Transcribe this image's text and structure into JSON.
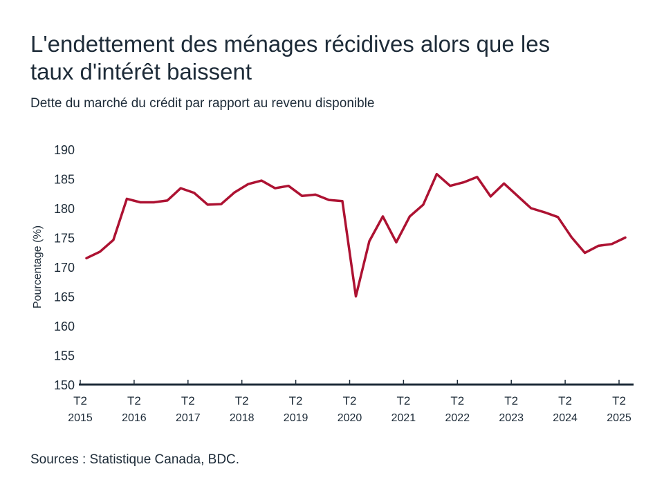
{
  "title": "L'endettement des ménages récidives alors que les taux d'intérêt baissent",
  "subtitle": "Dette du marché du crédit par rapport au revenu disponible",
  "source": "Sources : Statistique Canada, BDC.",
  "colors": {
    "line": "#ad1232",
    "axis": "#1d2b38",
    "text": "#1d2b38"
  },
  "chart_data": {
    "type": "line",
    "title": "L'endettement des ménages récidives alors que les taux d'intérêt baissent",
    "subtitle": "Dette du marché du crédit par rapport au revenu disponible",
    "xlabel": "",
    "ylabel": "Pourcentage (%)",
    "ylim": [
      150,
      190
    ],
    "yticks": [
      150,
      155,
      160,
      165,
      170,
      175,
      180,
      185,
      190
    ],
    "xticks": [
      {
        "q": "T2",
        "year": "2015"
      },
      {
        "q": "T2",
        "year": "2016"
      },
      {
        "q": "T2",
        "year": "2017"
      },
      {
        "q": "T2",
        "year": "2018"
      },
      {
        "q": "T2",
        "year": "2019"
      },
      {
        "q": "T2",
        "year": "2020"
      },
      {
        "q": "T2",
        "year": "2021"
      },
      {
        "q": "T2",
        "year": "2022"
      },
      {
        "q": "T2",
        "year": "2023"
      },
      {
        "q": "T2",
        "year": "2024"
      },
      {
        "q": "T2",
        "year": "2025"
      }
    ],
    "grid": false,
    "x": [
      "2015 T2",
      "2015 T3",
      "2015 T4",
      "2016 T1",
      "2016 T2",
      "2016 T3",
      "2016 T4",
      "2017 T1",
      "2017 T2",
      "2017 T3",
      "2017 T4",
      "2018 T1",
      "2018 T2",
      "2018 T3",
      "2018 T4",
      "2019 T1",
      "2019 T2",
      "2019 T3",
      "2019 T4",
      "2020 T1",
      "2020 T2",
      "2020 T3",
      "2020 T4",
      "2021 T1",
      "2021 T2",
      "2021 T3",
      "2021 T4",
      "2022 T1",
      "2022 T2",
      "2022 T3",
      "2022 T4",
      "2023 T1",
      "2023 T2",
      "2023 T3",
      "2023 T4",
      "2024 T1",
      "2024 T2",
      "2024 T3",
      "2024 T4",
      "2025 T1",
      "2025 T2"
    ],
    "series": [
      {
        "values": [
          171.5,
          172.6,
          174.6,
          181.6,
          181.0,
          181.0,
          181.3,
          183.4,
          182.6,
          180.6,
          180.7,
          182.7,
          184.1,
          184.7,
          183.4,
          183.8,
          182.1,
          182.3,
          181.4,
          181.2,
          165.0,
          174.4,
          178.6,
          174.2,
          178.6,
          180.6,
          185.8,
          183.8,
          184.4,
          185.3,
          182.0,
          184.2,
          182.1,
          180.0,
          179.3,
          178.5,
          175.1,
          172.4,
          173.6,
          173.9,
          175.0
        ]
      }
    ]
  }
}
